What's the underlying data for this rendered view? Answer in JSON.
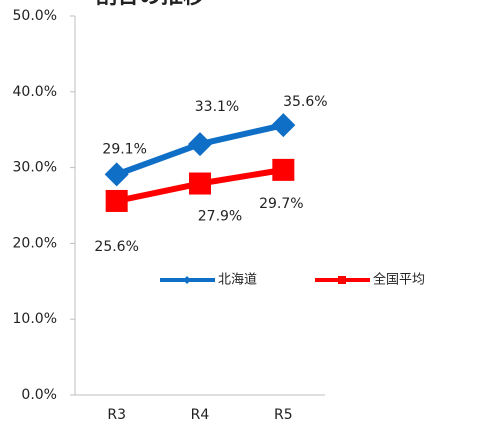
{
  "chart_data": {
    "type": "line",
    "title": "割合の推移",
    "categories": [
      "R3",
      "R4",
      "R5"
    ],
    "series": [
      {
        "name": "北海道",
        "color": "#0f6fc6",
        "marker": "diamond",
        "values": [
          29.1,
          33.1,
          35.6
        ],
        "value_labels": [
          "29.1%",
          "33.1%",
          "35.6%"
        ]
      },
      {
        "name": "全国平均",
        "color": "#ff0000",
        "marker": "square",
        "values": [
          25.6,
          27.9,
          29.7
        ],
        "value_labels": [
          "25.6%",
          "27.9%",
          "29.7%"
        ]
      }
    ],
    "ylim": [
      0,
      50
    ],
    "yticks": [
      {
        "value": 0,
        "label": "0.0%"
      },
      {
        "value": 10,
        "label": "10.0%"
      },
      {
        "value": 20,
        "label": "20.0%"
      },
      {
        "value": 30,
        "label": "30.0%"
      },
      {
        "value": 40,
        "label": "40.0%"
      },
      {
        "value": 50,
        "label": "50.0%"
      }
    ],
    "grid": false
  }
}
